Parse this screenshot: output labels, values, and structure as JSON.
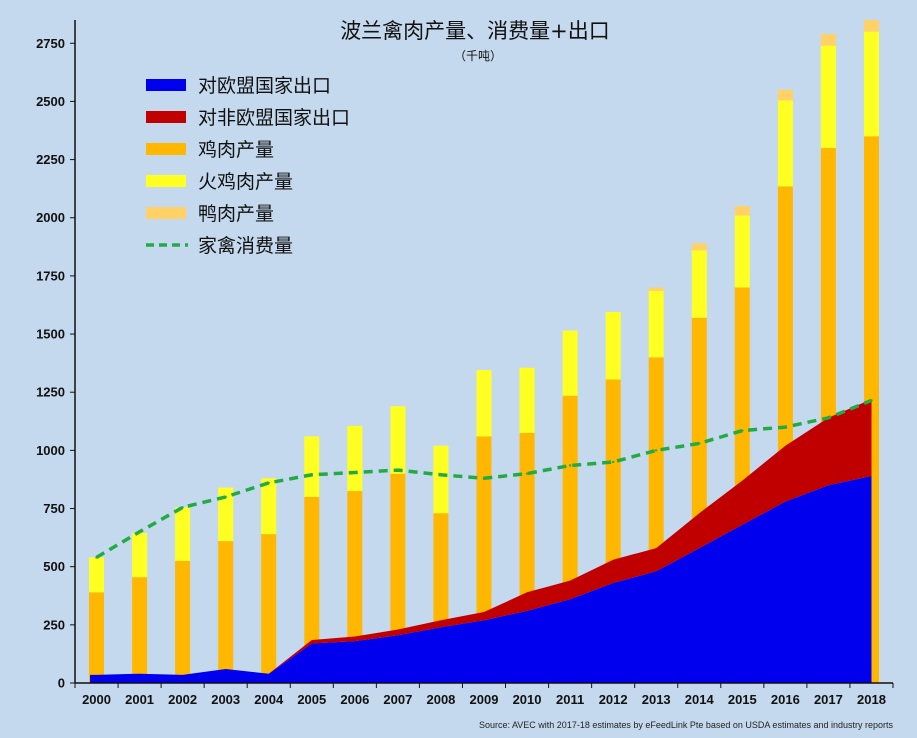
{
  "chart_data": {
    "type": "bar",
    "title": "波兰禽肉产量、消费量+出口",
    "subtitle": "（千吨）",
    "source": "Source: AVEC with 2017-18 estimates by eFeedLink Pte based on USDA estimates and industry reports",
    "categories": [
      "2000",
      "2001",
      "2002",
      "2003",
      "2004",
      "2005",
      "2006",
      "2007",
      "2008",
      "2009",
      "2010",
      "2011",
      "2012",
      "2013",
      "2014",
      "2015",
      "2016",
      "2017",
      "2018"
    ],
    "ylim": [
      0,
      2850
    ],
    "yticks": [
      0,
      250,
      500,
      750,
      1000,
      1250,
      1500,
      1750,
      2000,
      2250,
      2500,
      2750
    ],
    "grid": false,
    "legend_position": "top-left",
    "stacked_bars": [
      {
        "name": "鸡肉产量",
        "color": "#ffb700",
        "values": [
          390,
          455,
          525,
          610,
          640,
          800,
          825,
          900,
          730,
          1060,
          1075,
          1235,
          1305,
          1400,
          1570,
          1700,
          2135,
          2300,
          2350
        ]
      },
      {
        "name": "火鸡肉产量",
        "color": "#ffff22",
        "values": [
          150,
          190,
          230,
          230,
          240,
          260,
          280,
          290,
          290,
          285,
          280,
          280,
          290,
          285,
          290,
          310,
          370,
          440,
          450
        ]
      },
      {
        "name": "鸭肉产量",
        "color": "#ffd166",
        "values": [
          0,
          0,
          0,
          0,
          0,
          0,
          0,
          0,
          0,
          0,
          0,
          0,
          0,
          15,
          30,
          40,
          45,
          50,
          50
        ]
      }
    ],
    "area_series": [
      {
        "name": "对欧盟国家出口",
        "color": "#0000ee",
        "values": [
          35,
          40,
          35,
          60,
          40,
          170,
          180,
          205,
          240,
          270,
          310,
          360,
          430,
          480,
          580,
          680,
          780,
          850,
          890
        ]
      },
      {
        "name": "对非欧盟国家出口",
        "color": "#c00000",
        "values": [
          0,
          0,
          0,
          0,
          0,
          15,
          20,
          25,
          30,
          35,
          80,
          80,
          100,
          100,
          150,
          190,
          240,
          290,
          330
        ]
      }
    ],
    "line_series": {
      "name": "家禽消费量",
      "color": "#22aa44",
      "values": [
        540,
        650,
        755,
        800,
        860,
        895,
        905,
        915,
        895,
        880,
        900,
        935,
        950,
        1000,
        1030,
        1085,
        1100,
        1140,
        1215
      ]
    },
    "legend": [
      {
        "label": "对欧盟国家出口",
        "color": "#0000ee",
        "style": "box"
      },
      {
        "label": "对非欧盟国家出口",
        "color": "#c00000",
        "style": "box"
      },
      {
        "label": "鸡肉产量",
        "color": "#ffb700",
        "style": "box"
      },
      {
        "label": "火鸡肉产量",
        "color": "#ffff22",
        "style": "box"
      },
      {
        "label": "鸭肉产量",
        "color": "#ffd166",
        "style": "box"
      },
      {
        "label": "家禽消费量",
        "color": "#22aa44",
        "style": "dash"
      }
    ]
  }
}
